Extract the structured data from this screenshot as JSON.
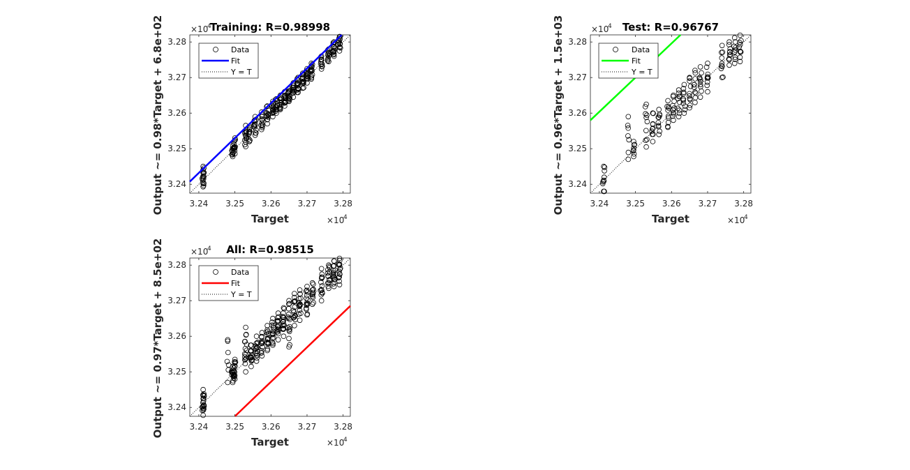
{
  "chart_data": [
    {
      "id": "training",
      "type": "scatter",
      "title": "Training: R=0.98998",
      "xlabel": "Target",
      "ylabel": "Output ~= 0.98*Target + 6.8e+02",
      "xlim": [
        32375,
        32820
      ],
      "ylim": [
        32375,
        32820
      ],
      "axis_exponent": "4",
      "x_ticks": [
        32400,
        32500,
        32600,
        32700,
        32800
      ],
      "x_tick_labels": [
        "3.24",
        "3.25",
        "3.26",
        "3.27",
        "3.28"
      ],
      "y_ticks": [
        32400,
        32500,
        32600,
        32700,
        32800
      ],
      "y_tick_labels": [
        "3.24",
        "3.25",
        "3.26",
        "3.27",
        "3.28"
      ],
      "fit": {
        "slope": 0.98,
        "intercept": 680,
        "color": "#0000ff"
      },
      "identity_line": true,
      "legend": {
        "placement": "top-left",
        "entries": [
          "Data",
          "Fit",
          "Y = T"
        ]
      },
      "data_groups": [
        {
          "target": 32412,
          "output_range": [
            32393,
            32450
          ],
          "n": 16
        },
        {
          "target": 32494,
          "output_range": [
            32478,
            32508
          ],
          "n": 10
        },
        {
          "target": 32500,
          "output_range": [
            32486,
            32530
          ],
          "n": 10
        },
        {
          "target": 32530,
          "output_range": [
            32506,
            32565
          ],
          "n": 12
        },
        {
          "target": 32540,
          "output_range": [
            32520,
            32563
          ],
          "n": 10
        },
        {
          "target": 32556,
          "output_range": [
            32538,
            32590
          ],
          "n": 12
        },
        {
          "target": 32574,
          "output_range": [
            32554,
            32603
          ],
          "n": 10
        },
        {
          "target": 32590,
          "output_range": [
            32570,
            32620
          ],
          "n": 12
        },
        {
          "target": 32605,
          "output_range": [
            32590,
            32633
          ],
          "n": 12
        },
        {
          "target": 32615,
          "output_range": [
            32600,
            32640
          ],
          "n": 10
        },
        {
          "target": 32626,
          "output_range": [
            32610,
            32650
          ],
          "n": 12
        },
        {
          "target": 32638,
          "output_range": [
            32620,
            32660
          ],
          "n": 12
        },
        {
          "target": 32650,
          "output_range": [
            32633,
            32668
          ],
          "n": 12
        },
        {
          "target": 32662,
          "output_range": [
            32645,
            32685
          ],
          "n": 12
        },
        {
          "target": 32675,
          "output_range": [
            32658,
            32700
          ],
          "n": 12
        },
        {
          "target": 32688,
          "output_range": [
            32670,
            32712
          ],
          "n": 12
        },
        {
          "target": 32700,
          "output_range": [
            32685,
            32725
          ],
          "n": 12
        },
        {
          "target": 32712,
          "output_range": [
            32696,
            32740
          ],
          "n": 12
        },
        {
          "target": 32740,
          "output_range": [
            32724,
            32760
          ],
          "n": 10
        },
        {
          "target": 32760,
          "output_range": [
            32745,
            32780
          ],
          "n": 10
        },
        {
          "target": 32775,
          "output_range": [
            32760,
            32800
          ],
          "n": 12
        },
        {
          "target": 32790,
          "output_range": [
            32775,
            32815
          ],
          "n": 12
        }
      ]
    },
    {
      "id": "test",
      "type": "scatter",
      "title": "Test: R=0.96767",
      "xlabel": "Target",
      "ylabel": "Output ~= 0.96*Target + 1.5e+03",
      "xlim": [
        32375,
        32820
      ],
      "ylim": [
        32375,
        32820
      ],
      "axis_exponent": "4",
      "x_ticks": [
        32400,
        32500,
        32600,
        32700,
        32800
      ],
      "x_tick_labels": [
        "3.24",
        "3.25",
        "3.26",
        "3.27",
        "3.28"
      ],
      "y_ticks": [
        32400,
        32500,
        32600,
        32700,
        32800
      ],
      "y_tick_labels": [
        "3.24",
        "3.25",
        "3.26",
        "3.27",
        "3.28"
      ],
      "fit": {
        "slope": 0.96,
        "intercept": 1500,
        "color": "#00ff00"
      },
      "identity_line": true,
      "legend": {
        "placement": "top-left",
        "entries": [
          "Data",
          "Fit",
          "Y = T"
        ]
      },
      "data_groups": [
        {
          "target": 32412,
          "output_range": [
            32380,
            32450
          ],
          "n": 8
        },
        {
          "target": 32480,
          "output_range": [
            32470,
            32590
          ],
          "n": 5
        },
        {
          "target": 32495,
          "output_range": [
            32478,
            32520
          ],
          "n": 6
        },
        {
          "target": 32530,
          "output_range": [
            32505,
            32625
          ],
          "n": 8
        },
        {
          "target": 32548,
          "output_range": [
            32520,
            32600
          ],
          "n": 8
        },
        {
          "target": 32565,
          "output_range": [
            32540,
            32610
          ],
          "n": 8
        },
        {
          "target": 32590,
          "output_range": [
            32560,
            32635
          ],
          "n": 8
        },
        {
          "target": 32605,
          "output_range": [
            32580,
            32650
          ],
          "n": 8
        },
        {
          "target": 32620,
          "output_range": [
            32590,
            32665
          ],
          "n": 8
        },
        {
          "target": 32635,
          "output_range": [
            32600,
            32680
          ],
          "n": 8
        },
        {
          "target": 32650,
          "output_range": [
            32615,
            32700
          ],
          "n": 8
        },
        {
          "target": 32665,
          "output_range": [
            32630,
            32720
          ],
          "n": 8
        },
        {
          "target": 32680,
          "output_range": [
            32645,
            32730
          ],
          "n": 8
        },
        {
          "target": 32700,
          "output_range": [
            32660,
            32740
          ],
          "n": 8
        },
        {
          "target": 32740,
          "output_range": [
            32700,
            32790
          ],
          "n": 8
        },
        {
          "target": 32760,
          "output_range": [
            32735,
            32800
          ],
          "n": 8
        },
        {
          "target": 32775,
          "output_range": [
            32740,
            32812
          ],
          "n": 8
        },
        {
          "target": 32790,
          "output_range": [
            32745,
            32820
          ],
          "n": 8
        }
      ]
    },
    {
      "id": "all",
      "type": "scatter",
      "title": "All: R=0.98515",
      "xlabel": "Target",
      "ylabel": "Output ~= 0.97*Target + 8.5e+02",
      "xlim": [
        32375,
        32820
      ],
      "ylim": [
        32375,
        32820
      ],
      "axis_exponent": "4",
      "x_ticks": [
        32400,
        32500,
        32600,
        32700,
        32800
      ],
      "x_tick_labels": [
        "3.24",
        "3.25",
        "3.26",
        "3.27",
        "3.28"
      ],
      "y_ticks": [
        32400,
        32500,
        32600,
        32700,
        32800
      ],
      "y_tick_labels": [
        "3.24",
        "3.25",
        "3.26",
        "3.27",
        "3.28"
      ],
      "fit": {
        "slope": 0.97,
        "intercept": 850,
        "color": "#ff0000"
      },
      "identity_line": true,
      "legend": {
        "placement": "top-left",
        "entries": [
          "Data",
          "Fit",
          "Y = T"
        ]
      },
      "data_groups": [
        {
          "target": 32412,
          "output_range": [
            32378,
            32450
          ],
          "n": 18
        },
        {
          "target": 32480,
          "output_range": [
            32470,
            32590
          ],
          "n": 5
        },
        {
          "target": 32494,
          "output_range": [
            32470,
            32515
          ],
          "n": 12
        },
        {
          "target": 32500,
          "output_range": [
            32480,
            32535
          ],
          "n": 12
        },
        {
          "target": 32530,
          "output_range": [
            32500,
            32625
          ],
          "n": 14
        },
        {
          "target": 32545,
          "output_range": [
            32515,
            32575
          ],
          "n": 12
        },
        {
          "target": 32560,
          "output_range": [
            32530,
            32600
          ],
          "n": 14
        },
        {
          "target": 32575,
          "output_range": [
            32545,
            32610
          ],
          "n": 12
        },
        {
          "target": 32590,
          "output_range": [
            32560,
            32630
          ],
          "n": 14
        },
        {
          "target": 32605,
          "output_range": [
            32575,
            32650
          ],
          "n": 14
        },
        {
          "target": 32620,
          "output_range": [
            32590,
            32665
          ],
          "n": 14
        },
        {
          "target": 32635,
          "output_range": [
            32600,
            32680
          ],
          "n": 14
        },
        {
          "target": 32650,
          "output_range": [
            32570,
            32700
          ],
          "n": 14
        },
        {
          "target": 32665,
          "output_range": [
            32630,
            32720
          ],
          "n": 14
        },
        {
          "target": 32680,
          "output_range": [
            32645,
            32730
          ],
          "n": 14
        },
        {
          "target": 32700,
          "output_range": [
            32660,
            32740
          ],
          "n": 14
        },
        {
          "target": 32715,
          "output_range": [
            32690,
            32750
          ],
          "n": 10
        },
        {
          "target": 32740,
          "output_range": [
            32700,
            32790
          ],
          "n": 12
        },
        {
          "target": 32760,
          "output_range": [
            32735,
            32800
          ],
          "n": 12
        },
        {
          "target": 32775,
          "output_range": [
            32740,
            32812
          ],
          "n": 14
        },
        {
          "target": 32790,
          "output_range": [
            32745,
            32825
          ],
          "n": 14
        }
      ]
    }
  ]
}
